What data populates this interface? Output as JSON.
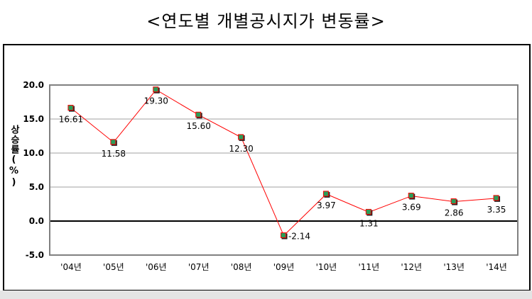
{
  "title": "<연도별 개별공시지가 변동률>",
  "chart_data": {
    "type": "line",
    "ylabel": "상승률(%)",
    "categories": [
      "'04년",
      "'05년",
      "'06년",
      "'07년",
      "'08년",
      "'09년",
      "'10년",
      "'11년",
      "'12년",
      "'13년",
      "'14년"
    ],
    "values": [
      16.61,
      11.58,
      19.3,
      15.6,
      12.3,
      -2.14,
      3.97,
      1.31,
      3.69,
      2.86,
      3.35
    ],
    "data_labels": [
      "16.61",
      "11.58",
      "19.30",
      "15.60",
      "12.30",
      "-2.14",
      "3.97",
      "1.31",
      "3.69",
      "2.86",
      "3.35"
    ],
    "ylim": [
      -5,
      20
    ],
    "yticks": [
      "20.0",
      "15.0",
      "10.0",
      "5.0",
      "0.0",
      "-5.0"
    ],
    "grid": true,
    "line_color": "#ff0000"
  }
}
